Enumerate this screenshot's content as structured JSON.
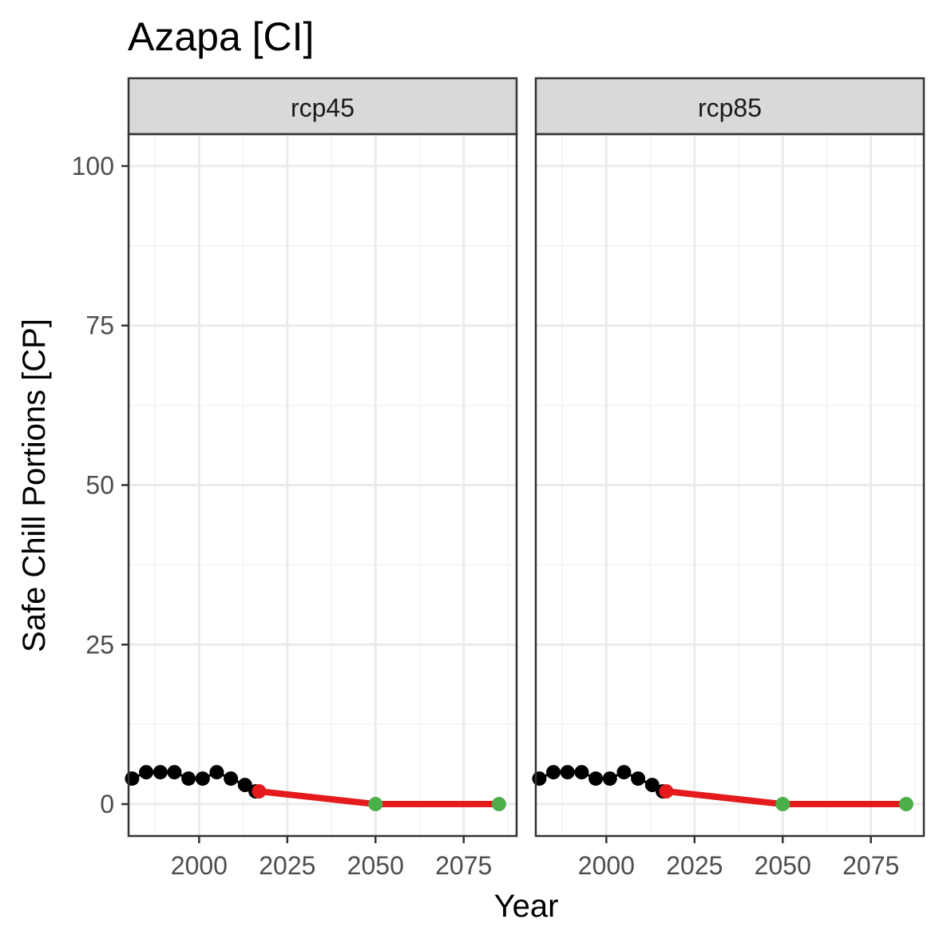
{
  "chart_data": {
    "type": "line",
    "title": "Azapa [CI]",
    "xlabel": "Year",
    "ylabel": "Safe Chill Portions [CP]",
    "xlim": [
      1980,
      2090
    ],
    "ylim": [
      -5,
      105
    ],
    "x_ticks": [
      2000,
      2025,
      2050,
      2075
    ],
    "y_ticks": [
      0,
      25,
      50,
      75,
      100
    ],
    "grid": true,
    "legend": "none",
    "colors": {
      "historic": "#000000",
      "scenario_line": "#e41a1c",
      "start_point": "#e41a1c",
      "future_point": "#4daf4a",
      "strip_fill": "#d9d9d9",
      "grid_major": "#ebebeb",
      "grid_minor": "#f3f3f3"
    },
    "panels": [
      {
        "label": "rcp45",
        "historic": {
          "x": [
            1981,
            1985,
            1989,
            1993,
            1997,
            2001,
            2005,
            2009,
            2013,
            2016
          ],
          "y": [
            4,
            5,
            5,
            5,
            4,
            4,
            5,
            4,
            3,
            2
          ]
        },
        "scenario": {
          "x": [
            2017,
            2050,
            2085
          ],
          "y": [
            2,
            0,
            0
          ]
        }
      },
      {
        "label": "rcp85",
        "historic": {
          "x": [
            1981,
            1985,
            1989,
            1993,
            1997,
            2001,
            2005,
            2009,
            2013,
            2016
          ],
          "y": [
            4,
            5,
            5,
            5,
            4,
            4,
            5,
            4,
            3,
            2
          ]
        },
        "scenario": {
          "x": [
            2017,
            2050,
            2085
          ],
          "y": [
            2,
            0,
            0
          ]
        }
      }
    ]
  }
}
